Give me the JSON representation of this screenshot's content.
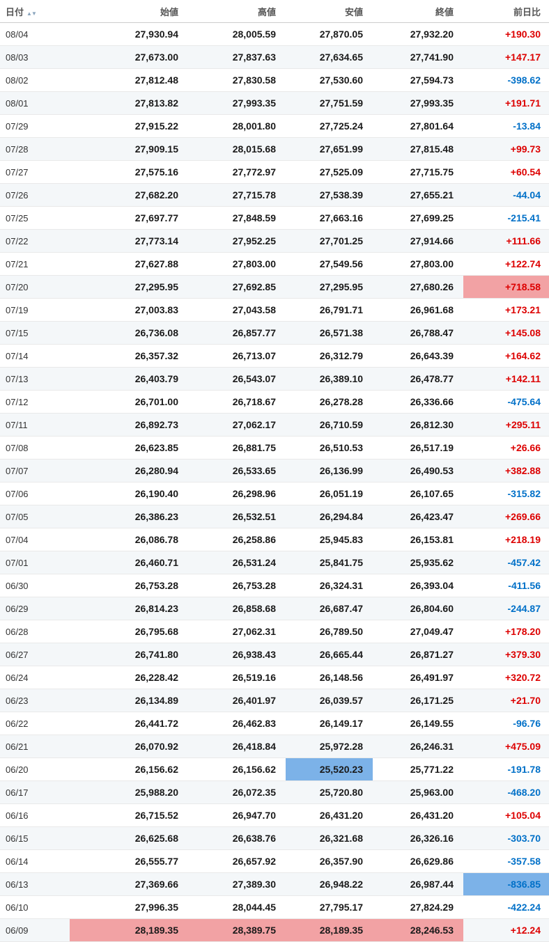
{
  "chart_data": {
    "type": "table",
    "columns": {
      "date": "日付",
      "open": "始値",
      "high": "高値",
      "low": "安値",
      "close": "終値",
      "change": "前日比"
    },
    "sort_icons": {
      "asc": "▲",
      "desc": "▼"
    },
    "colors": {
      "positive_change": "#dd0000",
      "negative_change": "#0070c8",
      "highlight_red": "#f2a2a4",
      "highlight_blue": "#7cb2e8",
      "row_stripe": "#f4f7f9"
    },
    "rows": [
      {
        "date": "08/04",
        "open": "27,930.94",
        "high": "28,005.59",
        "low": "27,870.05",
        "close": "27,932.20",
        "change": "+190.30"
      },
      {
        "date": "08/03",
        "open": "27,673.00",
        "high": "27,837.63",
        "low": "27,634.65",
        "close": "27,741.90",
        "change": "+147.17"
      },
      {
        "date": "08/02",
        "open": "27,812.48",
        "high": "27,830.58",
        "low": "27,530.60",
        "close": "27,594.73",
        "change": "-398.62"
      },
      {
        "date": "08/01",
        "open": "27,813.82",
        "high": "27,993.35",
        "low": "27,751.59",
        "close": "27,993.35",
        "change": "+191.71"
      },
      {
        "date": "07/29",
        "open": "27,915.22",
        "high": "28,001.80",
        "low": "27,725.24",
        "close": "27,801.64",
        "change": "-13.84"
      },
      {
        "date": "07/28",
        "open": "27,909.15",
        "high": "28,015.68",
        "low": "27,651.99",
        "close": "27,815.48",
        "change": "+99.73"
      },
      {
        "date": "07/27",
        "open": "27,575.16",
        "high": "27,772.97",
        "low": "27,525.09",
        "close": "27,715.75",
        "change": "+60.54"
      },
      {
        "date": "07/26",
        "open": "27,682.20",
        "high": "27,715.78",
        "low": "27,538.39",
        "close": "27,655.21",
        "change": "-44.04"
      },
      {
        "date": "07/25",
        "open": "27,697.77",
        "high": "27,848.59",
        "low": "27,663.16",
        "close": "27,699.25",
        "change": "-215.41"
      },
      {
        "date": "07/22",
        "open": "27,773.14",
        "high": "27,952.25",
        "low": "27,701.25",
        "close": "27,914.66",
        "change": "+111.66"
      },
      {
        "date": "07/21",
        "open": "27,627.88",
        "high": "27,803.00",
        "low": "27,549.56",
        "close": "27,803.00",
        "change": "+122.74"
      },
      {
        "date": "07/20",
        "open": "27,295.95",
        "high": "27,692.85",
        "low": "27,295.95",
        "close": "27,680.26",
        "change": "+718.58",
        "hl": {
          "change": "red"
        }
      },
      {
        "date": "07/19",
        "open": "27,003.83",
        "high": "27,043.58",
        "low": "26,791.71",
        "close": "26,961.68",
        "change": "+173.21"
      },
      {
        "date": "07/15",
        "open": "26,736.08",
        "high": "26,857.77",
        "low": "26,571.38",
        "close": "26,788.47",
        "change": "+145.08"
      },
      {
        "date": "07/14",
        "open": "26,357.32",
        "high": "26,713.07",
        "low": "26,312.79",
        "close": "26,643.39",
        "change": "+164.62"
      },
      {
        "date": "07/13",
        "open": "26,403.79",
        "high": "26,543.07",
        "low": "26,389.10",
        "close": "26,478.77",
        "change": "+142.11"
      },
      {
        "date": "07/12",
        "open": "26,701.00",
        "high": "26,718.67",
        "low": "26,278.28",
        "close": "26,336.66",
        "change": "-475.64"
      },
      {
        "date": "07/11",
        "open": "26,892.73",
        "high": "27,062.17",
        "low": "26,710.59",
        "close": "26,812.30",
        "change": "+295.11"
      },
      {
        "date": "07/08",
        "open": "26,623.85",
        "high": "26,881.75",
        "low": "26,510.53",
        "close": "26,517.19",
        "change": "+26.66"
      },
      {
        "date": "07/07",
        "open": "26,280.94",
        "high": "26,533.65",
        "low": "26,136.99",
        "close": "26,490.53",
        "change": "+382.88"
      },
      {
        "date": "07/06",
        "open": "26,190.40",
        "high": "26,298.96",
        "low": "26,051.19",
        "close": "26,107.65",
        "change": "-315.82"
      },
      {
        "date": "07/05",
        "open": "26,386.23",
        "high": "26,532.51",
        "low": "26,294.84",
        "close": "26,423.47",
        "change": "+269.66"
      },
      {
        "date": "07/04",
        "open": "26,086.78",
        "high": "26,258.86",
        "low": "25,945.83",
        "close": "26,153.81",
        "change": "+218.19"
      },
      {
        "date": "07/01",
        "open": "26,460.71",
        "high": "26,531.24",
        "low": "25,841.75",
        "close": "25,935.62",
        "change": "-457.42"
      },
      {
        "date": "06/30",
        "open": "26,753.28",
        "high": "26,753.28",
        "low": "26,324.31",
        "close": "26,393.04",
        "change": "-411.56"
      },
      {
        "date": "06/29",
        "open": "26,814.23",
        "high": "26,858.68",
        "low": "26,687.47",
        "close": "26,804.60",
        "change": "-244.87"
      },
      {
        "date": "06/28",
        "open": "26,795.68",
        "high": "27,062.31",
        "low": "26,789.50",
        "close": "27,049.47",
        "change": "+178.20"
      },
      {
        "date": "06/27",
        "open": "26,741.80",
        "high": "26,938.43",
        "low": "26,665.44",
        "close": "26,871.27",
        "change": "+379.30"
      },
      {
        "date": "06/24",
        "open": "26,228.42",
        "high": "26,519.16",
        "low": "26,148.56",
        "close": "26,491.97",
        "change": "+320.72"
      },
      {
        "date": "06/23",
        "open": "26,134.89",
        "high": "26,401.97",
        "low": "26,039.57",
        "close": "26,171.25",
        "change": "+21.70"
      },
      {
        "date": "06/22",
        "open": "26,441.72",
        "high": "26,462.83",
        "low": "26,149.17",
        "close": "26,149.55",
        "change": "-96.76"
      },
      {
        "date": "06/21",
        "open": "26,070.92",
        "high": "26,418.84",
        "low": "25,972.28",
        "close": "26,246.31",
        "change": "+475.09"
      },
      {
        "date": "06/20",
        "open": "26,156.62",
        "high": "26,156.62",
        "low": "25,520.23",
        "close": "25,771.22",
        "change": "-191.78",
        "hl": {
          "low": "blue"
        }
      },
      {
        "date": "06/17",
        "open": "25,988.20",
        "high": "26,072.35",
        "low": "25,720.80",
        "close": "25,963.00",
        "change": "-468.20"
      },
      {
        "date": "06/16",
        "open": "26,715.52",
        "high": "26,947.70",
        "low": "26,431.20",
        "close": "26,431.20",
        "change": "+105.04"
      },
      {
        "date": "06/15",
        "open": "26,625.68",
        "high": "26,638.76",
        "low": "26,321.68",
        "close": "26,326.16",
        "change": "-303.70"
      },
      {
        "date": "06/14",
        "open": "26,555.77",
        "high": "26,657.92",
        "low": "26,357.90",
        "close": "26,629.86",
        "change": "-357.58"
      },
      {
        "date": "06/13",
        "open": "27,369.66",
        "high": "27,389.30",
        "low": "26,948.22",
        "close": "26,987.44",
        "change": "-836.85",
        "hl": {
          "change": "blue"
        }
      },
      {
        "date": "06/10",
        "open": "27,996.35",
        "high": "28,044.45",
        "low": "27,795.17",
        "close": "27,824.29",
        "change": "-422.24"
      },
      {
        "date": "06/09",
        "open": "28,189.35",
        "high": "28,389.75",
        "low": "28,189.35",
        "close": "28,246.53",
        "change": "+12.24",
        "hl": {
          "open": "red",
          "high": "red",
          "low": "red",
          "close": "red"
        }
      }
    ]
  }
}
